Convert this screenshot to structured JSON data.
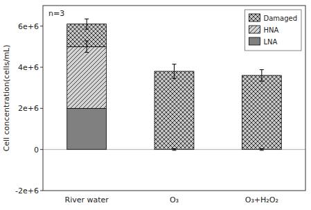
{
  "chart_data": {
    "type": "bar",
    "stacked": true,
    "categories": [
      "River water",
      "O₃",
      "O₃+H₂O₂"
    ],
    "series": [
      {
        "name": "LNA",
        "color": "#808080",
        "values": [
          2000000,
          0,
          0
        ],
        "errors": [
          null,
          40000,
          40000
        ]
      },
      {
        "name": "HNA",
        "color": "#d4d4d4",
        "values": [
          3000000,
          0,
          0
        ],
        "errors": [
          280000,
          null,
          null
        ]
      },
      {
        "name": "Damaged",
        "color": "#c8c8c8",
        "values": [
          1100000,
          3800000,
          3600000
        ],
        "errors": [
          250000,
          350000,
          280000
        ]
      }
    ],
    "ylabel": "Cell concentration(cells/mL)",
    "annotation": "n=3",
    "ylim": [
      -2000000,
      7000000
    ],
    "yticks": [
      {
        "value": -2000000,
        "label": "-2e+6"
      },
      0,
      {
        "value": 2000000,
        "label": "2e+6"
      },
      {
        "value": 4000000,
        "label": "4e+6"
      },
      {
        "value": 6000000,
        "label": "6e+6"
      }
    ],
    "grid": false,
    "legend": "upper right"
  }
}
